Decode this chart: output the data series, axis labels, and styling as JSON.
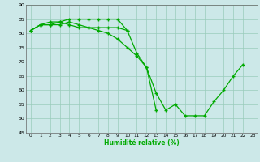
{
  "xlabel": "Humidité relative (%)",
  "background_color": "#cce8e8",
  "grid_color": "#99ccbb",
  "line_color": "#00aa00",
  "xlim": [
    -0.5,
    23.5
  ],
  "ylim": [
    45,
    90
  ],
  "yticks": [
    45,
    50,
    55,
    60,
    65,
    70,
    75,
    80,
    85,
    90
  ],
  "xticks": [
    0,
    1,
    2,
    3,
    4,
    5,
    6,
    7,
    8,
    9,
    10,
    11,
    12,
    13,
    14,
    15,
    16,
    17,
    18,
    19,
    20,
    21,
    22,
    23
  ],
  "line1_x": [
    0,
    1,
    2,
    3,
    4,
    5,
    6,
    7,
    8,
    9,
    10,
    11,
    12,
    13,
    14,
    15,
    16,
    17,
    18,
    19,
    20,
    21,
    22
  ],
  "line1_y": [
    81,
    83,
    83,
    84,
    83,
    82,
    82,
    82,
    82,
    82,
    81,
    73,
    68,
    59,
    53,
    55,
    51,
    51,
    51,
    56,
    60,
    65,
    69
  ],
  "line2_x": [
    0,
    1,
    2,
    3,
    4,
    5,
    6,
    7,
    8,
    9,
    10
  ],
  "line2_y": [
    81,
    83,
    84,
    84,
    85,
    85,
    85,
    85,
    85,
    85,
    81
  ],
  "line3_x": [
    0,
    1,
    2,
    3,
    4,
    5,
    6,
    7,
    8,
    9,
    10,
    11,
    12,
    13
  ],
  "line3_y": [
    81,
    83,
    83,
    83,
    84,
    83,
    82,
    81,
    80,
    78,
    75,
    72,
    68,
    53
  ]
}
